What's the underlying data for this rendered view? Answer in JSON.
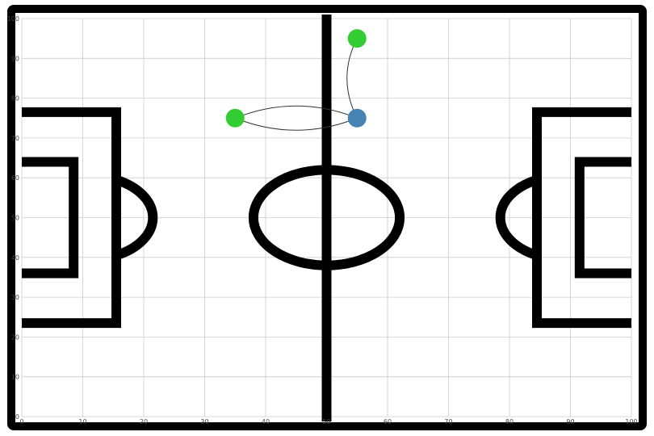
{
  "chart_data": {
    "type": "scatter",
    "title": "",
    "xlabel": "",
    "ylabel": "",
    "xlim": [
      0,
      100
    ],
    "ylim": [
      0,
      100
    ],
    "grid": true,
    "x_ticks": [
      0,
      10,
      20,
      30,
      40,
      50,
      60,
      70,
      80,
      90,
      100
    ],
    "y_ticks": [
      0,
      10,
      20,
      30,
      40,
      50,
      60,
      70,
      80,
      90,
      100
    ],
    "pitch": {
      "halfway_x": 50,
      "center_circle": {
        "cx": 50,
        "cy": 50,
        "r": 12
      },
      "penalty_box_left": {
        "x0": 0,
        "x1": 15.5,
        "y0": 23.5,
        "y1": 76.5
      },
      "six_yard_box_left": {
        "x0": 0,
        "x1": 8.5,
        "y0": 36,
        "y1": 64
      },
      "penalty_arc_left": {
        "cx": 11,
        "cy": 50,
        "r": 10.5,
        "clip_x": 15.5
      },
      "penalty_box_right": {
        "x0": 84.5,
        "x1": 100,
        "y0": 23.5,
        "y1": 76.5
      },
      "six_yard_box_right": {
        "x0": 91.5,
        "x1": 100,
        "y0": 36,
        "y1": 64
      },
      "penalty_arc_right": {
        "cx": 89,
        "cy": 50,
        "r": 10.5,
        "clip_x": 84.5
      }
    },
    "series": [
      {
        "color": "#33cc33",
        "points": [
          {
            "x": 35,
            "y": 75
          },
          {
            "x": 55,
            "y": 95
          }
        ]
      },
      {
        "color": "#4682b4",
        "points": [
          {
            "x": 55,
            "y": 75
          }
        ]
      }
    ],
    "passes": [
      {
        "from": [
          35,
          75
        ],
        "to": [
          55,
          75
        ],
        "curve": "up"
      },
      {
        "from": [
          55,
          75
        ],
        "to": [
          35,
          75
        ],
        "curve": "down"
      },
      {
        "from": [
          55,
          95
        ],
        "to": [
          55,
          75
        ],
        "curve": "left"
      }
    ],
    "colors": {
      "lines": "#000000",
      "grid": "#cccccc",
      "pass_line": "#333333"
    }
  }
}
